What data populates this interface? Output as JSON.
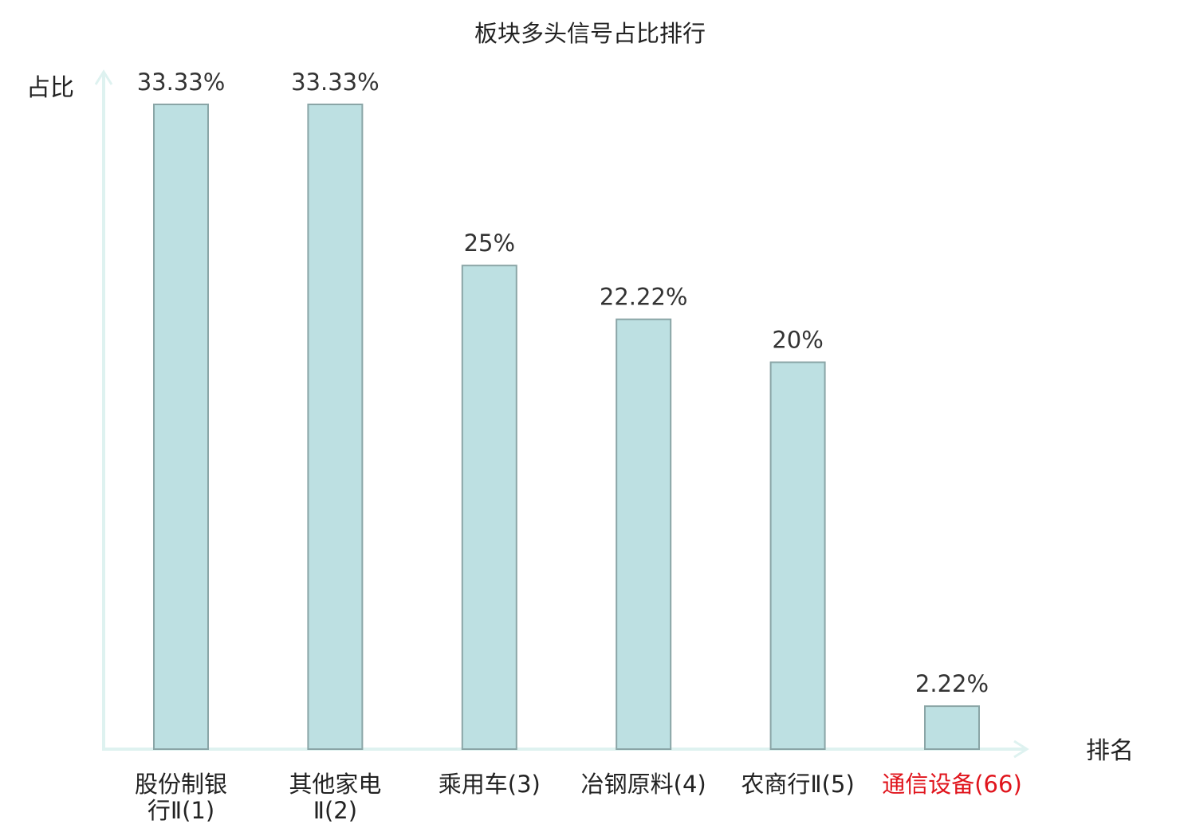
{
  "chart_data": {
    "type": "bar",
    "title": "板块多头信号占比排行",
    "ylabel": "占比",
    "xlabel": "排名",
    "categories": [
      {
        "lines": [
          "股份制银",
          "行Ⅱ(1)"
        ],
        "highlight": false
      },
      {
        "lines": [
          "其他家电",
          "Ⅱ(2)"
        ],
        "highlight": false
      },
      {
        "lines": [
          "乘用车(3)"
        ],
        "highlight": false
      },
      {
        "lines": [
          "冶钢原料(4)"
        ],
        "highlight": false
      },
      {
        "lines": [
          "农商行Ⅱ(5)"
        ],
        "highlight": false
      },
      {
        "lines": [
          "通信设备(66)"
        ],
        "highlight": true
      }
    ],
    "values": [
      33.33,
      33.33,
      25,
      22.22,
      20,
      2.22
    ],
    "value_labels": [
      "33.33%",
      "33.33%",
      "25%",
      "22.22%",
      "20%",
      "2.22%"
    ],
    "ylim": [
      0,
      33.33
    ],
    "grid": false,
    "legend": "none"
  },
  "colors": {
    "bar_fill": "#bde0e2",
    "bar_stroke": "#8aa5a6",
    "axis": "#def2f0",
    "text": "#222222",
    "value_text": "#333333",
    "highlight": "#e0141c"
  }
}
